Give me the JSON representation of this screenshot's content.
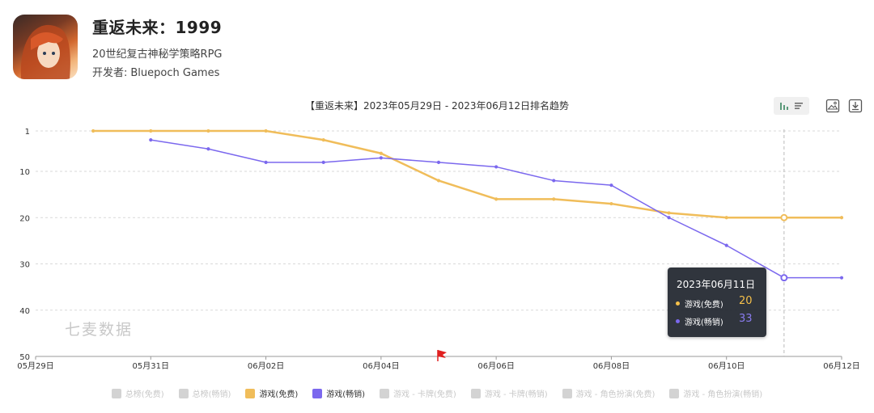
{
  "app": {
    "title": "重返未来：1999",
    "subtitle": "20世纪复古神秘学策略RPG",
    "developer_label": "开发者:",
    "developer": "Bluepoch Games"
  },
  "toolbar": {
    "icons": [
      "bar-chart-icon",
      "list-icon",
      "image-export-icon",
      "download-icon"
    ]
  },
  "watermark": "七麦数据",
  "tooltip": {
    "date": "2023年06月11日",
    "rows": [
      {
        "label": "游戏(免费)",
        "value": "20",
        "color": "#f5c04a"
      },
      {
        "label": "游戏(畅销)",
        "value": "33",
        "color": "#7b68ee"
      }
    ]
  },
  "legend": [
    {
      "label": "总榜(免费)",
      "active": false
    },
    {
      "label": "总榜(畅销)",
      "active": false
    },
    {
      "label": "游戏(免费)",
      "active": true,
      "color": "#f0bd5a"
    },
    {
      "label": "游戏(畅销)",
      "active": true,
      "color": "#7b68ee"
    },
    {
      "label": "游戏 - 卡牌(免费)",
      "active": false
    },
    {
      "label": "游戏 - 卡牌(畅销)",
      "active": false
    },
    {
      "label": "游戏 - 角色扮演(免费)",
      "active": false
    },
    {
      "label": "游戏 - 角色扮演(畅销)",
      "active": false
    }
  ],
  "chart_data": {
    "type": "line",
    "title": "【重返未来】2023年05月29日 - 2023年06月12日排名趋势",
    "x_ticks": [
      "05月29日",
      "05月31日",
      "06月02日",
      "06月04日",
      "06月06日",
      "06月08日",
      "06月10日",
      "06月12日"
    ],
    "x": [
      "05-29",
      "05-30",
      "05-31",
      "06-01",
      "06-02",
      "06-03",
      "06-04",
      "06-05",
      "06-06",
      "06-07",
      "06-08",
      "06-09",
      "06-10",
      "06-11",
      "06-12"
    ],
    "y_ticks": [
      1,
      10,
      20,
      30,
      40,
      50
    ],
    "ylim": [
      1,
      50
    ],
    "y_inverted": true,
    "series": [
      {
        "name": "游戏(免费)",
        "color": "#f0bd5a",
        "values": [
          null,
          1,
          1,
          1,
          1,
          3,
          6,
          12,
          16,
          16,
          17,
          19,
          20,
          20,
          20
        ]
      },
      {
        "name": "游戏(畅销)",
        "color": "#7b68ee",
        "values": [
          null,
          null,
          3,
          5,
          8,
          8,
          7,
          8,
          9,
          12,
          13,
          20,
          26,
          33,
          33
        ]
      }
    ],
    "highlight_x": "06-11",
    "flag_marker_x": "06-05",
    "grid": "horizontal dashed"
  }
}
